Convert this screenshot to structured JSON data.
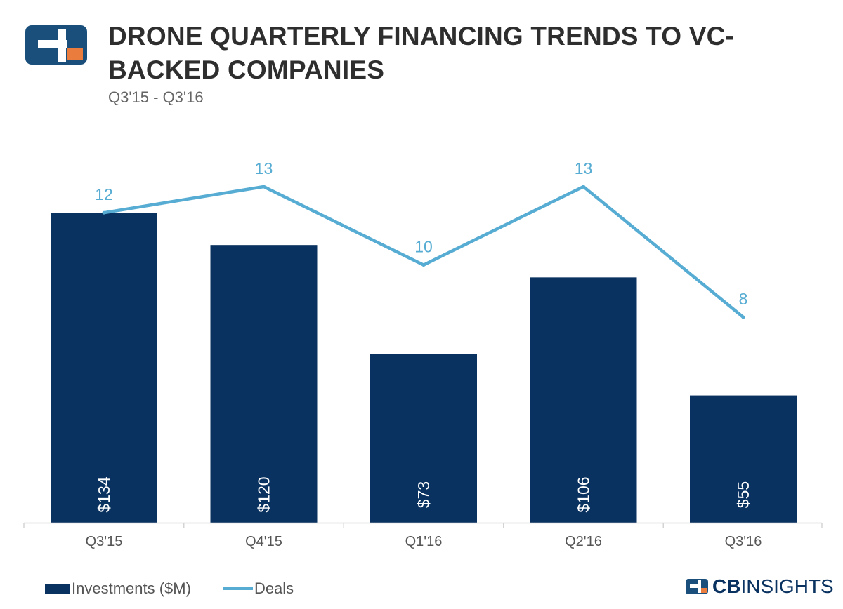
{
  "header": {
    "title": "DRONE QUARTERLY FINANCING TRENDS TO VC-BACKED COMPANIES",
    "subtitle": "Q3'15 - Q3'16"
  },
  "legend": {
    "investments_label": "Investments ($M)",
    "deals_label": "Deals"
  },
  "brand": {
    "logo_icon": "cb-insights-logo-icon",
    "footer_bold": "CB",
    "footer_rest": "INSIGHTS"
  },
  "colors": {
    "bar": "#0a3260",
    "line": "#56acd2",
    "logo_orange": "#ea7c3e",
    "logo_navy": "#1a4f7c"
  },
  "chart_data": {
    "type": "bar",
    "title": "DRONE QUARTERLY FINANCING TRENDS TO VC-BACKED COMPANIES",
    "subtitle": "Q3'15 - Q3'16",
    "categories": [
      "Q3'15",
      "Q4'15",
      "Q1'16",
      "Q2'16",
      "Q3'16"
    ],
    "series": [
      {
        "name": "Investments ($M)",
        "type": "bar",
        "values": [
          134,
          120,
          73,
          106,
          55
        ],
        "labels": [
          "$134",
          "$120",
          "$73",
          "$106",
          "$55"
        ],
        "axis": "left"
      },
      {
        "name": "Deals",
        "type": "line",
        "values": [
          12,
          13,
          10,
          13,
          8
        ],
        "labels": [
          "12",
          "13",
          "10",
          "13",
          "8"
        ],
        "axis": "right"
      }
    ],
    "xlabel": "",
    "ylabel": "",
    "ylim": [
      0,
      134
    ],
    "y2lim": [
      0,
      13
    ],
    "grid": false,
    "legend_position": "bottom-left"
  }
}
